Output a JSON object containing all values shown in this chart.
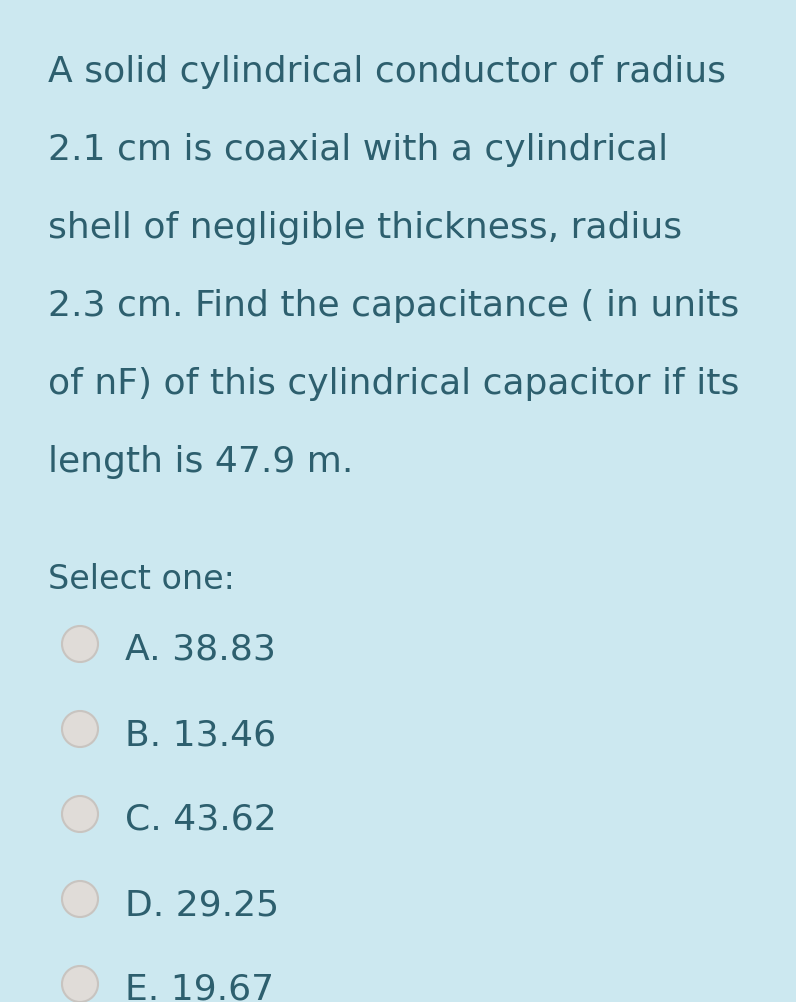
{
  "background_color": "#cce8f0",
  "text_color": "#2d5f6e",
  "question_lines": [
    "A solid cylindrical conductor of radius",
    "2.1 cm is coaxial with a cylindrical",
    "shell of negligible thickness, radius",
    "2.3 cm. Find the capacitance ( in units",
    "of nF) of this cylindrical capacitor if its",
    "length is 47.9 m."
  ],
  "select_label": "Select one:",
  "options": [
    "A. 38.83",
    "B. 13.46",
    "C. 43.62",
    "D. 29.25",
    "E. 19.67"
  ],
  "radio_fill_color": "#e0dcd8",
  "radio_edge_color": "#c8c4c0",
  "question_fontsize": 26,
  "select_fontsize": 24,
  "option_fontsize": 26,
  "figwidth": 7.96,
  "figheight": 10.03,
  "dpi": 100
}
